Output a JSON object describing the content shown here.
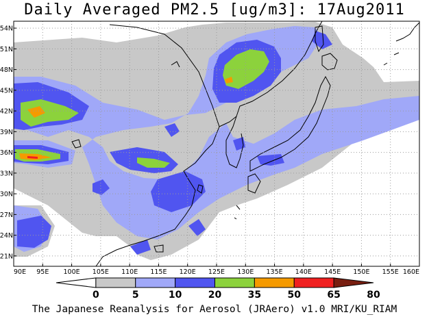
{
  "title": "Daily Averaged PM2.5 [ug/m3]: 17Aug2011",
  "footer": "The Japanese Reanalysis for Aerosol (JRAero) v1.0 MRI/KU_RIAM",
  "map": {
    "lon_range": [
      90,
      160
    ],
    "lat_range": [
      19.5,
      55
    ],
    "lon_ticks": [
      "90E",
      "95E",
      "100E",
      "105E",
      "110E",
      "115E",
      "120E",
      "125E",
      "130E",
      "135E",
      "140E",
      "145E",
      "150E",
      "155E",
      "160E"
    ],
    "lat_ticks": [
      "21N",
      "24N",
      "27N",
      "30N",
      "33N",
      "36N",
      "39N",
      "42N",
      "45N",
      "48N",
      "51N",
      "54N"
    ],
    "grid": "dotted",
    "projection": "lat-lon"
  },
  "colorbar": {
    "levels": [
      "0",
      "5",
      "10",
      "20",
      "35",
      "50",
      "65",
      "80"
    ],
    "colors": [
      "#ffffff",
      "#c8c8c8",
      "#a0a8f8",
      "#5055f0",
      "#8cd23c",
      "#f59a00",
      "#f02020",
      "#781e10"
    ]
  }
}
